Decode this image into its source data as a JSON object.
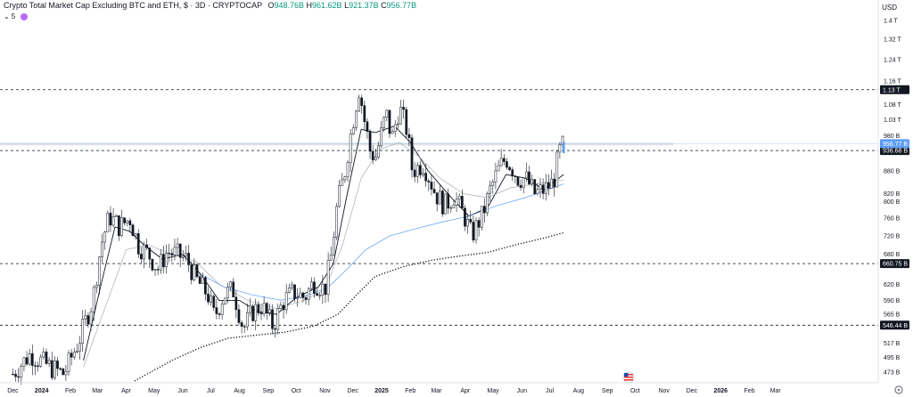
{
  "header": {
    "title": "Crypto Total Market Cap Excluding BTC and ETH, $ · 3D · CRYPTOCAP",
    "open_label": "O",
    "open": "948.76B",
    "high_label": "H",
    "high": "961.62B",
    "low_label": "L",
    "low": "921.37B",
    "close_label": "C",
    "close": "956.77B",
    "ma_count": "5",
    "currency": "USD"
  },
  "colors": {
    "up": "#ffffff",
    "down": "#131722",
    "ma_fast": "#131722",
    "ma_mid": "#9598a1",
    "ma_blue": "#5b9cf6",
    "ma_dotted": "#131722",
    "price_badge": "#5b9cf6",
    "level_badge": "#131722"
  },
  "chart_data": {
    "type": "candlestick",
    "title": "Crypto Total Market Cap Excluding BTC and ETH, $ · 3D · CRYPTOCAP",
    "y_axis": {
      "scale": "log",
      "range": [
        460,
        1450
      ],
      "unit": "USD",
      "ticks": [
        {
          "v": 1400,
          "label": "1.4 T"
        },
        {
          "v": 1320,
          "label": "1.32 T"
        },
        {
          "v": 1240,
          "label": "1.24 T"
        },
        {
          "v": 1160,
          "label": "1.16 T"
        },
        {
          "v": 1080,
          "label": "1.08 T"
        },
        {
          "v": 1030,
          "label": "1.03 T"
        },
        {
          "v": 980,
          "label": "980 B"
        },
        {
          "v": 880,
          "label": "880 B"
        },
        {
          "v": 820,
          "label": "820 B"
        },
        {
          "v": 800,
          "label": "800 B"
        },
        {
          "v": 760,
          "label": "760 B"
        },
        {
          "v": 720,
          "label": "720 B"
        },
        {
          "v": 680,
          "label": "680 B"
        },
        {
          "v": 620,
          "label": "620 B"
        },
        {
          "v": 590,
          "label": "590 B"
        },
        {
          "v": 565,
          "label": "565 B"
        },
        {
          "v": 517,
          "label": "517 B"
        },
        {
          "v": 495,
          "label": "495 B"
        },
        {
          "v": 473,
          "label": "473 B"
        }
      ]
    },
    "x_axis": {
      "labels": [
        {
          "t": "2023-12-01",
          "label": "Dec",
          "bold": false
        },
        {
          "t": "2024-01-01",
          "label": "2024",
          "bold": true
        },
        {
          "t": "2024-02-01",
          "label": "Feb",
          "bold": false
        },
        {
          "t": "2024-03-01",
          "label": "Mar",
          "bold": false
        },
        {
          "t": "2024-04-01",
          "label": "Apr",
          "bold": false
        },
        {
          "t": "2024-05-01",
          "label": "May",
          "bold": false
        },
        {
          "t": "2024-06-01",
          "label": "Jun",
          "bold": false
        },
        {
          "t": "2024-07-01",
          "label": "Jul",
          "bold": false
        },
        {
          "t": "2024-08-01",
          "label": "Aug",
          "bold": false
        },
        {
          "t": "2024-09-01",
          "label": "Sep",
          "bold": false
        },
        {
          "t": "2024-10-01",
          "label": "Oct",
          "bold": false
        },
        {
          "t": "2024-11-01",
          "label": "Nov",
          "bold": false
        },
        {
          "t": "2024-12-01",
          "label": "Dec",
          "bold": false
        },
        {
          "t": "2025-01-01",
          "label": "2025",
          "bold": true
        },
        {
          "t": "2025-02-01",
          "label": "Feb",
          "bold": false
        },
        {
          "t": "2025-03-01",
          "label": "Mar",
          "bold": false
        },
        {
          "t": "2025-04-01",
          "label": "Apr",
          "bold": false
        },
        {
          "t": "2025-05-01",
          "label": "May",
          "bold": false
        },
        {
          "t": "2025-06-01",
          "label": "Jun",
          "bold": false
        },
        {
          "t": "2025-07-01",
          "label": "Jul",
          "bold": false
        },
        {
          "t": "2025-08-01",
          "label": "Aug",
          "bold": false
        },
        {
          "t": "2025-09-01",
          "label": "Sep",
          "bold": false
        },
        {
          "t": "2025-10-01",
          "label": "Oct",
          "bold": false
        },
        {
          "t": "2025-11-01",
          "label": "Nov",
          "bold": false
        },
        {
          "t": "2025-12-01",
          "label": "Dec",
          "bold": false
        },
        {
          "t": "2026-01-01",
          "label": "2026",
          "bold": true
        },
        {
          "t": "2026-02-01",
          "label": "Feb",
          "bold": false
        },
        {
          "t": "2026-03-01",
          "label": "Mar",
          "bold": false
        }
      ]
    },
    "horizontal_levels": [
      {
        "v": 1130,
        "label": "1.13 T",
        "style": "dashed"
      },
      {
        "v": 936.68,
        "label": "936.68 B",
        "style": "dashed"
      },
      {
        "v": 660.75,
        "label": "660.75 B",
        "style": "dashed"
      },
      {
        "v": 546.44,
        "label": "546.44 B",
        "style": "dashed"
      }
    ],
    "current_price": {
      "v": 956.77,
      "label": "956.77 B"
    },
    "close_path": [
      {
        "t": "2023-12-01",
        "c": 470
      },
      {
        "t": "2023-12-20",
        "c": 500
      },
      {
        "t": "2024-01-10",
        "c": 480
      },
      {
        "t": "2024-01-25",
        "c": 470
      },
      {
        "t": "2024-02-10",
        "c": 520
      },
      {
        "t": "2024-02-25",
        "c": 590
      },
      {
        "t": "2024-03-05",
        "c": 700
      },
      {
        "t": "2024-03-14",
        "c": 765
      },
      {
        "t": "2024-03-25",
        "c": 740
      },
      {
        "t": "2024-04-05",
        "c": 760
      },
      {
        "t": "2024-04-14",
        "c": 700
      },
      {
        "t": "2024-04-25",
        "c": 680
      },
      {
        "t": "2024-05-05",
        "c": 650
      },
      {
        "t": "2024-05-15",
        "c": 685
      },
      {
        "t": "2024-05-25",
        "c": 680
      },
      {
        "t": "2024-06-05",
        "c": 670
      },
      {
        "t": "2024-06-15",
        "c": 630
      },
      {
        "t": "2024-06-28",
        "c": 600
      },
      {
        "t": "2024-07-05",
        "c": 560
      },
      {
        "t": "2024-07-15",
        "c": 600
      },
      {
        "t": "2024-07-25",
        "c": 610
      },
      {
        "t": "2024-08-05",
        "c": 540
      },
      {
        "t": "2024-08-15",
        "c": 570
      },
      {
        "t": "2024-08-25",
        "c": 580
      },
      {
        "t": "2024-09-06",
        "c": 545
      },
      {
        "t": "2024-09-18",
        "c": 590
      },
      {
        "t": "2024-09-28",
        "c": 605
      },
      {
        "t": "2024-10-10",
        "c": 595
      },
      {
        "t": "2024-10-20",
        "c": 625
      },
      {
        "t": "2024-11-01",
        "c": 610
      },
      {
        "t": "2024-11-08",
        "c": 680
      },
      {
        "t": "2024-11-14",
        "c": 790
      },
      {
        "t": "2024-11-22",
        "c": 870
      },
      {
        "t": "2024-12-03",
        "c": 1060
      },
      {
        "t": "2024-12-08",
        "c": 1140
      },
      {
        "t": "2024-12-12",
        "c": 1050
      },
      {
        "t": "2024-12-20",
        "c": 930
      },
      {
        "t": "2024-12-26",
        "c": 920
      },
      {
        "t": "2025-01-06",
        "c": 1050
      },
      {
        "t": "2025-01-12",
        "c": 970
      },
      {
        "t": "2025-01-20",
        "c": 1070
      },
      {
        "t": "2025-01-28",
        "c": 1000
      },
      {
        "t": "2025-02-03",
        "c": 880
      },
      {
        "t": "2025-02-15",
        "c": 900
      },
      {
        "t": "2025-02-28",
        "c": 820
      },
      {
        "t": "2025-03-10",
        "c": 790
      },
      {
        "t": "2025-03-20",
        "c": 815
      },
      {
        "t": "2025-04-01",
        "c": 760
      },
      {
        "t": "2025-04-08",
        "c": 720
      },
      {
        "t": "2025-04-20",
        "c": 770
      },
      {
        "t": "2025-04-28",
        "c": 830
      },
      {
        "t": "2025-05-08",
        "c": 890
      },
      {
        "t": "2025-05-15",
        "c": 915
      },
      {
        "t": "2025-05-28",
        "c": 860
      },
      {
        "t": "2025-06-05",
        "c": 860
      },
      {
        "t": "2025-06-15",
        "c": 820
      },
      {
        "t": "2025-06-25",
        "c": 830
      },
      {
        "t": "2025-07-05",
        "c": 850
      },
      {
        "t": "2025-07-11",
        "c": 930
      },
      {
        "t": "2025-07-16",
        "c": 956.77
      }
    ],
    "moving_averages": [
      {
        "color": "#131722",
        "style": "solid",
        "points": [
          {
            "t": "2024-02-15",
            "v": 490
          },
          {
            "t": "2024-03-05",
            "v": 620
          },
          {
            "t": "2024-03-20",
            "v": 740
          },
          {
            "t": "2024-04-05",
            "v": 730
          },
          {
            "t": "2024-04-20",
            "v": 700
          },
          {
            "t": "2024-05-10",
            "v": 670
          },
          {
            "t": "2024-06-01",
            "v": 680
          },
          {
            "t": "2024-06-20",
            "v": 640
          },
          {
            "t": "2024-07-10",
            "v": 590
          },
          {
            "t": "2024-08-01",
            "v": 590
          },
          {
            "t": "2024-08-20",
            "v": 570
          },
          {
            "t": "2024-09-10",
            "v": 565
          },
          {
            "t": "2024-10-01",
            "v": 595
          },
          {
            "t": "2024-10-25",
            "v": 615
          },
          {
            "t": "2024-11-10",
            "v": 660
          },
          {
            "t": "2024-11-25",
            "v": 820
          },
          {
            "t": "2024-12-10",
            "v": 1000
          },
          {
            "t": "2024-12-25",
            "v": 990
          },
          {
            "t": "2025-01-15",
            "v": 1010
          },
          {
            "t": "2025-02-01",
            "v": 960
          },
          {
            "t": "2025-02-20",
            "v": 880
          },
          {
            "t": "2025-03-15",
            "v": 815
          },
          {
            "t": "2025-04-05",
            "v": 765
          },
          {
            "t": "2025-04-25",
            "v": 785
          },
          {
            "t": "2025-05-15",
            "v": 870
          },
          {
            "t": "2025-06-05",
            "v": 860
          },
          {
            "t": "2025-06-25",
            "v": 830
          },
          {
            "t": "2025-07-16",
            "v": 870
          }
        ]
      },
      {
        "color": "#9598a1",
        "style": "solid",
        "points": [
          {
            "t": "2024-02-15",
            "v": 480
          },
          {
            "t": "2024-03-10",
            "v": 580
          },
          {
            "t": "2024-04-01",
            "v": 690
          },
          {
            "t": "2024-04-25",
            "v": 700
          },
          {
            "t": "2024-05-20",
            "v": 680
          },
          {
            "t": "2024-06-15",
            "v": 665
          },
          {
            "t": "2024-07-10",
            "v": 620
          },
          {
            "t": "2024-08-10",
            "v": 590
          },
          {
            "t": "2024-09-10",
            "v": 575
          },
          {
            "t": "2024-10-10",
            "v": 590
          },
          {
            "t": "2024-11-01",
            "v": 610
          },
          {
            "t": "2024-11-20",
            "v": 700
          },
          {
            "t": "2024-12-10",
            "v": 860
          },
          {
            "t": "2024-12-30",
            "v": 940
          },
          {
            "t": "2025-01-20",
            "v": 960
          },
          {
            "t": "2025-02-10",
            "v": 920
          },
          {
            "t": "2025-03-05",
            "v": 860
          },
          {
            "t": "2025-03-30",
            "v": 820
          },
          {
            "t": "2025-04-25",
            "v": 810
          },
          {
            "t": "2025-05-20",
            "v": 835
          },
          {
            "t": "2025-06-15",
            "v": 845
          },
          {
            "t": "2025-07-16",
            "v": 855
          }
        ]
      },
      {
        "color": "#5b9cf6",
        "style": "solid",
        "points": [
          {
            "t": "2024-06-20",
            "v": 640
          },
          {
            "t": "2024-07-15",
            "v": 615
          },
          {
            "t": "2024-08-15",
            "v": 600
          },
          {
            "t": "2024-09-15",
            "v": 590
          },
          {
            "t": "2024-10-15",
            "v": 600
          },
          {
            "t": "2024-11-05",
            "v": 615
          },
          {
            "t": "2024-11-25",
            "v": 650
          },
          {
            "t": "2024-12-15",
            "v": 690
          },
          {
            "t": "2025-01-10",
            "v": 720
          },
          {
            "t": "2025-02-05",
            "v": 735
          },
          {
            "t": "2025-03-05",
            "v": 750
          },
          {
            "t": "2025-04-05",
            "v": 765
          },
          {
            "t": "2025-05-05",
            "v": 790
          },
          {
            "t": "2025-06-05",
            "v": 810
          },
          {
            "t": "2025-07-16",
            "v": 845
          }
        ]
      },
      {
        "color": "#131722",
        "style": "dotted",
        "points": [
          {
            "t": "2024-04-10",
            "v": 460
          },
          {
            "t": "2024-05-20",
            "v": 490
          },
          {
            "t": "2024-06-20",
            "v": 510
          },
          {
            "t": "2024-07-20",
            "v": 525
          },
          {
            "t": "2024-08-20",
            "v": 530
          },
          {
            "t": "2024-09-20",
            "v": 535
          },
          {
            "t": "2024-10-20",
            "v": 545
          },
          {
            "t": "2024-11-15",
            "v": 565
          },
          {
            "t": "2024-12-05",
            "v": 600
          },
          {
            "t": "2024-12-25",
            "v": 635
          },
          {
            "t": "2025-01-25",
            "v": 655
          },
          {
            "t": "2025-02-25",
            "v": 668
          },
          {
            "t": "2025-03-25",
            "v": 676
          },
          {
            "t": "2025-04-25",
            "v": 684
          },
          {
            "t": "2025-05-25",
            "v": 700
          },
          {
            "t": "2025-06-25",
            "v": 715
          },
          {
            "t": "2025-07-16",
            "v": 727
          }
        ]
      }
    ]
  }
}
